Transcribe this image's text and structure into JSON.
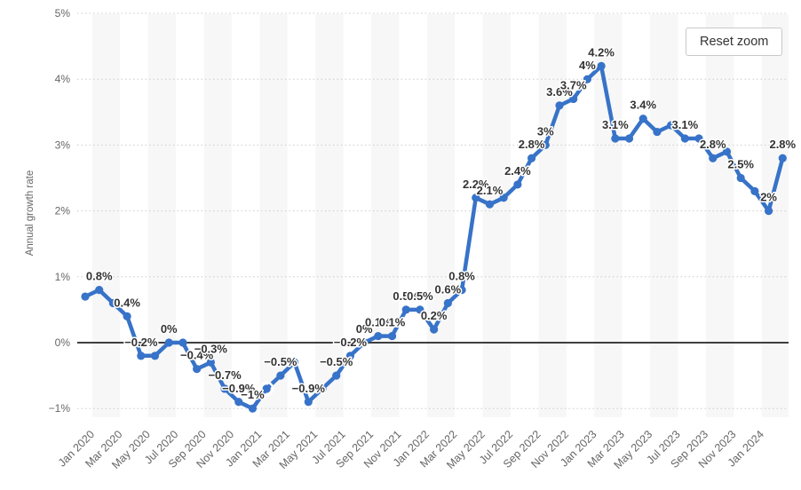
{
  "button": {
    "reset_zoom_label": "Reset zoom"
  },
  "y_axis": {
    "title": "Annual growth rate",
    "ticks": [
      "−1%",
      "0%",
      "1%",
      "2%",
      "3%",
      "4%",
      "5%"
    ],
    "min": -1,
    "max": 5
  },
  "x_axis": {
    "tick_labels": [
      "Jan 2020",
      "Mar 2020",
      "May 2020",
      "Jul 2020",
      "Sep 2020",
      "Nov 2020",
      "Jan 2021",
      "Mar 2021",
      "May 2021",
      "Jul 2021",
      "Sep 2021",
      "Nov 2021",
      "Jan 2022",
      "Mar 2022",
      "May 2022",
      "Jul 2022",
      "Sep 2022",
      "Nov 2022",
      "Jan 2023",
      "Mar 2023",
      "May 2023",
      "Jul 2023",
      "Sep 2023",
      "Nov 2023",
      "Jan 2024"
    ]
  },
  "chart_data": {
    "type": "line",
    "title": "",
    "ylabel": "Annual growth rate",
    "xlabel": "",
    "ylim": [
      -1,
      5
    ],
    "grid": "horizontal-dotted",
    "legend": "none",
    "x": [
      "Jan 2020",
      "Feb 2020",
      "Mar 2020",
      "Apr 2020",
      "May 2020",
      "Jun 2020",
      "Jul 2020",
      "Aug 2020",
      "Sep 2020",
      "Oct 2020",
      "Nov 2020",
      "Dec 2020",
      "Jan 2021",
      "Feb 2021",
      "Mar 2021",
      "Apr 2021",
      "May 2021",
      "Jun 2021",
      "Jul 2021",
      "Aug 2021",
      "Sep 2021",
      "Oct 2021",
      "Nov 2021",
      "Dec 2021",
      "Jan 2022",
      "Feb 2022",
      "Mar 2022",
      "Apr 2022",
      "May 2022",
      "Jun 2022",
      "Jul 2022",
      "Aug 2022",
      "Sep 2022",
      "Oct 2022",
      "Nov 2022",
      "Dec 2022",
      "Jan 2023",
      "Feb 2023",
      "Mar 2023",
      "Apr 2023",
      "May 2023",
      "Jun 2023",
      "Jul 2023",
      "Aug 2023",
      "Sep 2023",
      "Oct 2023",
      "Nov 2023",
      "Dec 2023",
      "Jan 2024",
      "Feb 2024",
      "Mar 2024"
    ],
    "values": [
      0.7,
      0.8,
      0.6,
      0.4,
      -0.2,
      -0.2,
      0,
      0,
      -0.4,
      -0.3,
      -0.7,
      -0.9,
      -1,
      -0.7,
      -0.5,
      -0.3,
      -0.9,
      -0.7,
      -0.5,
      -0.2,
      0,
      0.1,
      0.1,
      0.5,
      0.5,
      0.2,
      0.6,
      0.8,
      2.2,
      2.1,
      2.2,
      2.4,
      2.8,
      3,
      3.6,
      3.7,
      4,
      4.2,
      3.1,
      3.1,
      3.4,
      3.2,
      3.3,
      3.1,
      3.1,
      2.8,
      2.9,
      2.5,
      2.3,
      2,
      2.8
    ],
    "point_labels": [
      null,
      "0.8%",
      null,
      "0.4%",
      "−0.2%",
      null,
      "0%",
      null,
      "−0.4%",
      "−0.3%",
      "−0.7%",
      "−0.9%",
      "−1%",
      null,
      "−0.5%",
      null,
      "−0.9%",
      null,
      "−0.5%",
      "−0.2%",
      "0%",
      "0.1%",
      "0.1%",
      "0.5%",
      "0.5%",
      "0.2%",
      "0.6%",
      "0.8%",
      "2.2%",
      "2.1%",
      null,
      "2.4%",
      "2.8%",
      "3%",
      "3.6%",
      "3.7%",
      "4%",
      "4.2%",
      "3.1%",
      null,
      "3.4%",
      null,
      null,
      "3.1%",
      null,
      "2.8%",
      null,
      "2.5%",
      null,
      "2%",
      "2.8%"
    ],
    "highlighted_point": "Feb 2021"
  },
  "colors": {
    "line": "#3773c8",
    "band": "#f7f7f7",
    "grid": "#cccccc",
    "zero_line": "#000000",
    "axis_text": "#666666",
    "label_text": "#333333"
  }
}
